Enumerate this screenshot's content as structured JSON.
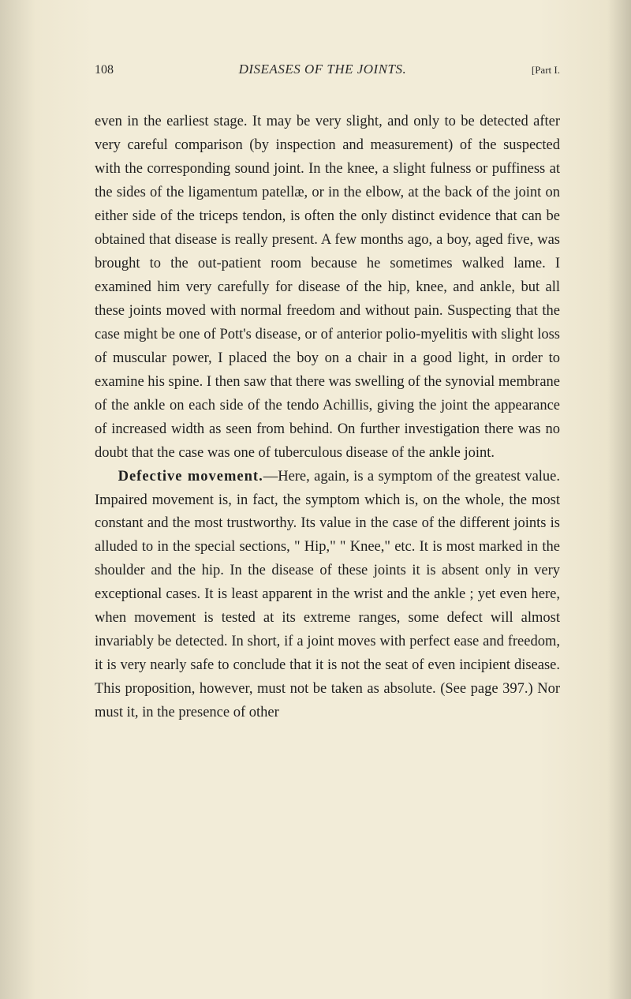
{
  "header": {
    "page_number": "108",
    "running_title": "DISEASES OF THE JOINTS.",
    "part_label": "[Part I."
  },
  "paragraphs": {
    "p1": "even in the earliest stage. It may be very slight, and only to be detected after very careful comparison (by inspection and measurement) of the suspected with the corresponding sound joint. In the knee, a slight fulness or puffiness at the sides of the ligamentum patellæ, or in the elbow, at the back of the joint on either side of the triceps tendon, is often the only distinct evidence that can be obtained that disease is really present. A few months ago, a boy, aged five, was brought to the out-patient room because he sometimes walked lame. I examined him very carefully for disease of the hip, knee, and ankle, but all these joints moved with normal freedom and without pain. Suspecting that the case might be one of Pott's disease, or of anterior polio-myelitis with slight loss of muscular power, I placed the boy on a chair in a good light, in order to examine his spine. I then saw that there was swelling of the synovial membrane of the ankle on each side of the tendo Achillis, giving the joint the appearance of increased width as seen from behind. On further investigation there was no doubt that the case was one of tuberculous disease of the ankle joint.",
    "p2_heading": "Defective movement.",
    "p2_body": "—Here, again, is a symptom of the greatest value. Impaired movement is, in fact, the symptom which is, on the whole, the most constant and the most trustworthy. Its value in the case of the different joints is alluded to in the special sections, \" Hip,\" \" Knee,\" etc. It is most marked in the shoulder and the hip. In the disease of these joints it is absent only in very exceptional cases. It is least apparent in the wrist and the ankle ; yet even here, when movement is tested at its extreme ranges, some defect will almost invariably be detected. In short, if a joint moves with perfect ease and freedom, it is very nearly safe to conclude that it is not the seat of even incipient disease. This proposition, however, must not be taken as absolute. (See page 397.) Nor must it, in the presence of other"
  },
  "styling": {
    "background_color": "#f0ead6",
    "text_color": "#1f1f1f",
    "body_font_size": 18.5,
    "line_height": 1.62,
    "header_font_size": 15,
    "title_font_size": 17
  }
}
